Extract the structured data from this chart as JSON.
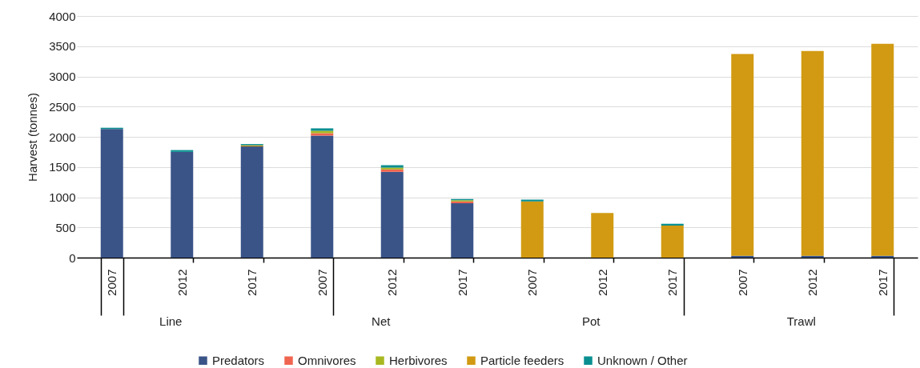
{
  "chart_data": {
    "type": "bar",
    "stacked": true,
    "ylabel": "Harvest (tonnes)",
    "categories": [
      "2007",
      "2012",
      "2017",
      "2007",
      "2012",
      "2017",
      "2007",
      "2012",
      "2017",
      "2007",
      "2012",
      "2017"
    ],
    "annotations": [
      "Line",
      "Net",
      "Pot",
      "Trawl"
    ],
    "series": [
      {
        "name": "Predators",
        "color": "#3a5488",
        "values": [
          2130,
          1750,
          1840,
          2020,
          1420,
          900,
          0,
          0,
          0,
          30,
          30,
          30
        ]
      },
      {
        "name": "Omnivores",
        "color": "#f0654f",
        "values": [
          0,
          0,
          0,
          40,
          40,
          30,
          0,
          0,
          0,
          0,
          0,
          0
        ]
      },
      {
        "name": "Herbivores",
        "color": "#a8b820",
        "values": [
          0,
          0,
          0,
          40,
          30,
          20,
          0,
          0,
          0,
          0,
          0,
          0
        ]
      },
      {
        "name": "Particle feeders",
        "color": "#d19a12",
        "values": [
          0,
          0,
          20,
          0,
          0,
          0,
          930,
          740,
          530,
          3340,
          3390,
          3510
        ]
      },
      {
        "name": "Unknown / Other",
        "color": "#0a8f91",
        "values": [
          20,
          30,
          20,
          40,
          40,
          20,
          30,
          0,
          30,
          0,
          0,
          0
        ]
      }
    ],
    "ylim": [
      0,
      4000
    ],
    "yticks": [
      0,
      500,
      1000,
      1500,
      2000,
      2500,
      3000,
      3500,
      4000
    ],
    "grid": "y",
    "legend": "bottom"
  }
}
